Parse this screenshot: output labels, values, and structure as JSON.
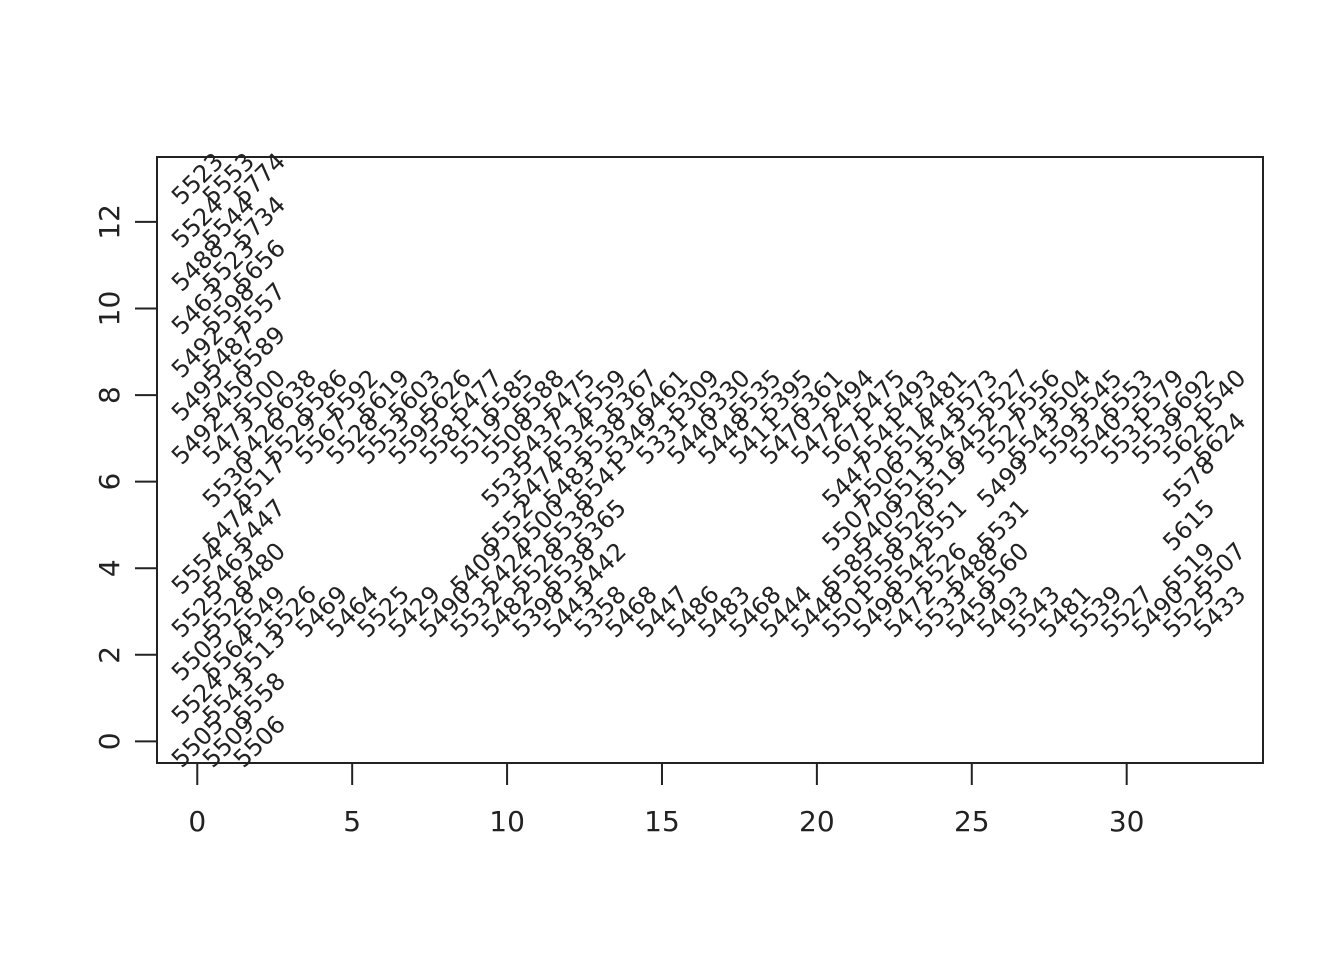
{
  "chart_data": {
    "type": "scatter",
    "title": "",
    "xlabel": "",
    "ylabel": "",
    "xlim": [
      -1.3,
      34.4
    ],
    "ylim": [
      -0.5,
      13.5
    ],
    "xticks": [
      "0",
      "5",
      "10",
      "15",
      "20",
      "25",
      "30"
    ],
    "yticks": [
      "0",
      "2",
      "4",
      "6",
      "8",
      "10",
      "12"
    ],
    "grid": false,
    "legend": "none",
    "text_color": "#222222",
    "points": [
      {
        "x": 0,
        "y": 0,
        "label": "5505"
      },
      {
        "x": 1,
        "y": 0,
        "label": "5509"
      },
      {
        "x": 2,
        "y": 0,
        "label": "5506"
      },
      {
        "x": 0,
        "y": 1,
        "label": "5524"
      },
      {
        "x": 1,
        "y": 1,
        "label": "5543"
      },
      {
        "x": 2,
        "y": 1,
        "label": "5558"
      },
      {
        "x": 0,
        "y": 2,
        "label": "5505"
      },
      {
        "x": 1,
        "y": 2,
        "label": "5564"
      },
      {
        "x": 2,
        "y": 2,
        "label": "5513"
      },
      {
        "x": 0,
        "y": 3,
        "label": "5525"
      },
      {
        "x": 1,
        "y": 3,
        "label": "5528"
      },
      {
        "x": 2,
        "y": 3,
        "label": "5549"
      },
      {
        "x": 0,
        "y": 4,
        "label": "5554"
      },
      {
        "x": 1,
        "y": 4,
        "label": "5463"
      },
      {
        "x": 2,
        "y": 4,
        "label": "5480"
      },
      {
        "x": 1,
        "y": 5,
        "label": "5474"
      },
      {
        "x": 2,
        "y": 5,
        "label": "5447"
      },
      {
        "x": 1,
        "y": 6,
        "label": "5530"
      },
      {
        "x": 2,
        "y": 6,
        "label": "5517"
      },
      {
        "x": 0,
        "y": 7,
        "label": "5492"
      },
      {
        "x": 1,
        "y": 7,
        "label": "5473"
      },
      {
        "x": 2,
        "y": 7,
        "label": "5426"
      },
      {
        "x": 0,
        "y": 8,
        "label": "5495"
      },
      {
        "x": 1,
        "y": 8,
        "label": "5450"
      },
      {
        "x": 2,
        "y": 8,
        "label": "5500"
      },
      {
        "x": 0,
        "y": 9,
        "label": "5492"
      },
      {
        "x": 1,
        "y": 9,
        "label": "5487"
      },
      {
        "x": 2,
        "y": 9,
        "label": "5589"
      },
      {
        "x": 0,
        "y": 10,
        "label": "5463"
      },
      {
        "x": 1,
        "y": 10,
        "label": "5598"
      },
      {
        "x": 2,
        "y": 10,
        "label": "5557"
      },
      {
        "x": 0,
        "y": 11,
        "label": "5488"
      },
      {
        "x": 1,
        "y": 11,
        "label": "5523"
      },
      {
        "x": 2,
        "y": 11,
        "label": "5656"
      },
      {
        "x": 0,
        "y": 12,
        "label": "5524"
      },
      {
        "x": 1,
        "y": 12,
        "label": "5544"
      },
      {
        "x": 2,
        "y": 12,
        "label": "5734"
      },
      {
        "x": 0,
        "y": 13,
        "label": "5523"
      },
      {
        "x": 1,
        "y": 13,
        "label": "5553"
      },
      {
        "x": 2,
        "y": 13,
        "label": "5774"
      },
      {
        "x": 3,
        "y": 7,
        "label": "5529"
      },
      {
        "x": 3,
        "y": 8,
        "label": "5638"
      },
      {
        "x": 4,
        "y": 7,
        "label": "5567"
      },
      {
        "x": 4,
        "y": 8,
        "label": "5586"
      },
      {
        "x": 5,
        "y": 7,
        "label": "5528"
      },
      {
        "x": 5,
        "y": 8,
        "label": "5592"
      },
      {
        "x": 6,
        "y": 7,
        "label": "5553"
      },
      {
        "x": 6,
        "y": 8,
        "label": "5619"
      },
      {
        "x": 7,
        "y": 7,
        "label": "5595"
      },
      {
        "x": 7,
        "y": 8,
        "label": "5603"
      },
      {
        "x": 8,
        "y": 7,
        "label": "5581"
      },
      {
        "x": 8,
        "y": 8,
        "label": "5626"
      },
      {
        "x": 9,
        "y": 7,
        "label": "5519"
      },
      {
        "x": 9,
        "y": 8,
        "label": "5477"
      },
      {
        "x": 10,
        "y": 7,
        "label": "5508"
      },
      {
        "x": 10,
        "y": 8,
        "label": "5585"
      },
      {
        "x": 11,
        "y": 7,
        "label": "5437"
      },
      {
        "x": 11,
        "y": 8,
        "label": "5588"
      },
      {
        "x": 12,
        "y": 7,
        "label": "5534"
      },
      {
        "x": 12,
        "y": 8,
        "label": "5475"
      },
      {
        "x": 13,
        "y": 7,
        "label": "5538"
      },
      {
        "x": 13,
        "y": 8,
        "label": "5559"
      },
      {
        "x": 14,
        "y": 7,
        "label": "5349"
      },
      {
        "x": 14,
        "y": 8,
        "label": "5367"
      },
      {
        "x": 15,
        "y": 7,
        "label": "5331"
      },
      {
        "x": 15,
        "y": 8,
        "label": "5461"
      },
      {
        "x": 16,
        "y": 7,
        "label": "5440"
      },
      {
        "x": 16,
        "y": 8,
        "label": "5309"
      },
      {
        "x": 17,
        "y": 7,
        "label": "5448"
      },
      {
        "x": 17,
        "y": 8,
        "label": "5330"
      },
      {
        "x": 18,
        "y": 7,
        "label": "5411"
      },
      {
        "x": 18,
        "y": 8,
        "label": "5535"
      },
      {
        "x": 19,
        "y": 7,
        "label": "5470"
      },
      {
        "x": 19,
        "y": 8,
        "label": "5395"
      },
      {
        "x": 20,
        "y": 7,
        "label": "5472"
      },
      {
        "x": 20,
        "y": 8,
        "label": "5361"
      },
      {
        "x": 21,
        "y": 7,
        "label": "5671"
      },
      {
        "x": 21,
        "y": 8,
        "label": "5494"
      },
      {
        "x": 22,
        "y": 7,
        "label": "5541"
      },
      {
        "x": 22,
        "y": 8,
        "label": "5475"
      },
      {
        "x": 23,
        "y": 7,
        "label": "5514"
      },
      {
        "x": 23,
        "y": 8,
        "label": "5493"
      },
      {
        "x": 24,
        "y": 7,
        "label": "5543"
      },
      {
        "x": 24,
        "y": 8,
        "label": "5481"
      },
      {
        "x": 25,
        "y": 7,
        "label": "5452"
      },
      {
        "x": 25,
        "y": 8,
        "label": "5573"
      },
      {
        "x": 26,
        "y": 7,
        "label": "5527"
      },
      {
        "x": 26,
        "y": 8,
        "label": "5527"
      },
      {
        "x": 27,
        "y": 7,
        "label": "5543"
      },
      {
        "x": 27,
        "y": 8,
        "label": "5556"
      },
      {
        "x": 28,
        "y": 7,
        "label": "5593"
      },
      {
        "x": 28,
        "y": 8,
        "label": "5504"
      },
      {
        "x": 29,
        "y": 7,
        "label": "5540"
      },
      {
        "x": 29,
        "y": 8,
        "label": "5545"
      },
      {
        "x": 30,
        "y": 7,
        "label": "5531"
      },
      {
        "x": 30,
        "y": 8,
        "label": "5553"
      },
      {
        "x": 31,
        "y": 7,
        "label": "5539"
      },
      {
        "x": 31,
        "y": 8,
        "label": "5579"
      },
      {
        "x": 32,
        "y": 7,
        "label": "5621"
      },
      {
        "x": 32,
        "y": 8,
        "label": "5692"
      },
      {
        "x": 33,
        "y": 7,
        "label": "5624"
      },
      {
        "x": 33,
        "y": 8,
        "label": "5540"
      },
      {
        "x": 3,
        "y": 3,
        "label": "5526"
      },
      {
        "x": 4,
        "y": 3,
        "label": "5469"
      },
      {
        "x": 5,
        "y": 3,
        "label": "5464"
      },
      {
        "x": 6,
        "y": 3,
        "label": "5525"
      },
      {
        "x": 7,
        "y": 3,
        "label": "5429"
      },
      {
        "x": 8,
        "y": 3,
        "label": "5490"
      },
      {
        "x": 9,
        "y": 3,
        "label": "5532"
      },
      {
        "x": 10,
        "y": 3,
        "label": "5482"
      },
      {
        "x": 11,
        "y": 3,
        "label": "5398"
      },
      {
        "x": 12,
        "y": 3,
        "label": "5443"
      },
      {
        "x": 13,
        "y": 3,
        "label": "5358"
      },
      {
        "x": 14,
        "y": 3,
        "label": "5468"
      },
      {
        "x": 15,
        "y": 3,
        "label": "5447"
      },
      {
        "x": 16,
        "y": 3,
        "label": "5486"
      },
      {
        "x": 17,
        "y": 3,
        "label": "5483"
      },
      {
        "x": 18,
        "y": 3,
        "label": "5468"
      },
      {
        "x": 19,
        "y": 3,
        "label": "5444"
      },
      {
        "x": 20,
        "y": 3,
        "label": "5448"
      },
      {
        "x": 21,
        "y": 3,
        "label": "5501"
      },
      {
        "x": 22,
        "y": 3,
        "label": "5498"
      },
      {
        "x": 23,
        "y": 3,
        "label": "5472"
      },
      {
        "x": 24,
        "y": 3,
        "label": "5533"
      },
      {
        "x": 25,
        "y": 3,
        "label": "5459"
      },
      {
        "x": 26,
        "y": 3,
        "label": "5493"
      },
      {
        "x": 27,
        "y": 3,
        "label": "5543"
      },
      {
        "x": 28,
        "y": 3,
        "label": "5481"
      },
      {
        "x": 29,
        "y": 3,
        "label": "5539"
      },
      {
        "x": 30,
        "y": 3,
        "label": "5527"
      },
      {
        "x": 31,
        "y": 3,
        "label": "5490"
      },
      {
        "x": 32,
        "y": 3,
        "label": "5525"
      },
      {
        "x": 33,
        "y": 3,
        "label": "5433"
      },
      {
        "x": 9,
        "y": 4,
        "label": "5409"
      },
      {
        "x": 10,
        "y": 4,
        "label": "5424"
      },
      {
        "x": 11,
        "y": 4,
        "label": "5528"
      },
      {
        "x": 12,
        "y": 4,
        "label": "5538"
      },
      {
        "x": 13,
        "y": 4,
        "label": "5442"
      },
      {
        "x": 10,
        "y": 5,
        "label": "5552"
      },
      {
        "x": 11,
        "y": 5,
        "label": "5500"
      },
      {
        "x": 12,
        "y": 5,
        "label": "5538"
      },
      {
        "x": 13,
        "y": 5,
        "label": "5365"
      },
      {
        "x": 10,
        "y": 6,
        "label": "5535"
      },
      {
        "x": 11,
        "y": 6,
        "label": "5474"
      },
      {
        "x": 12,
        "y": 6,
        "label": "5483"
      },
      {
        "x": 13,
        "y": 6,
        "label": "5541"
      },
      {
        "x": 21,
        "y": 4,
        "label": "5585"
      },
      {
        "x": 22,
        "y": 4,
        "label": "5558"
      },
      {
        "x": 23,
        "y": 4,
        "label": "5542"
      },
      {
        "x": 24,
        "y": 4,
        "label": "5526"
      },
      {
        "x": 25,
        "y": 4,
        "label": "5488"
      },
      {
        "x": 26,
        "y": 4,
        "label": "5560"
      },
      {
        "x": 21,
        "y": 5,
        "label": "5507"
      },
      {
        "x": 22,
        "y": 5,
        "label": "5409"
      },
      {
        "x": 23,
        "y": 5,
        "label": "5520"
      },
      {
        "x": 24,
        "y": 5,
        "label": "5551"
      },
      {
        "x": 26,
        "y": 5,
        "label": "5531"
      },
      {
        "x": 21,
        "y": 6,
        "label": "5447"
      },
      {
        "x": 22,
        "y": 6,
        "label": "5506"
      },
      {
        "x": 23,
        "y": 6,
        "label": "5513"
      },
      {
        "x": 24,
        "y": 6,
        "label": "5519"
      },
      {
        "x": 26,
        "y": 6,
        "label": "5499"
      },
      {
        "x": 32,
        "y": 4,
        "label": "5519"
      },
      {
        "x": 33,
        "y": 4,
        "label": "5507"
      },
      {
        "x": 32,
        "y": 5,
        "label": "5615"
      },
      {
        "x": 32,
        "y": 6,
        "label": "5578"
      }
    ]
  }
}
